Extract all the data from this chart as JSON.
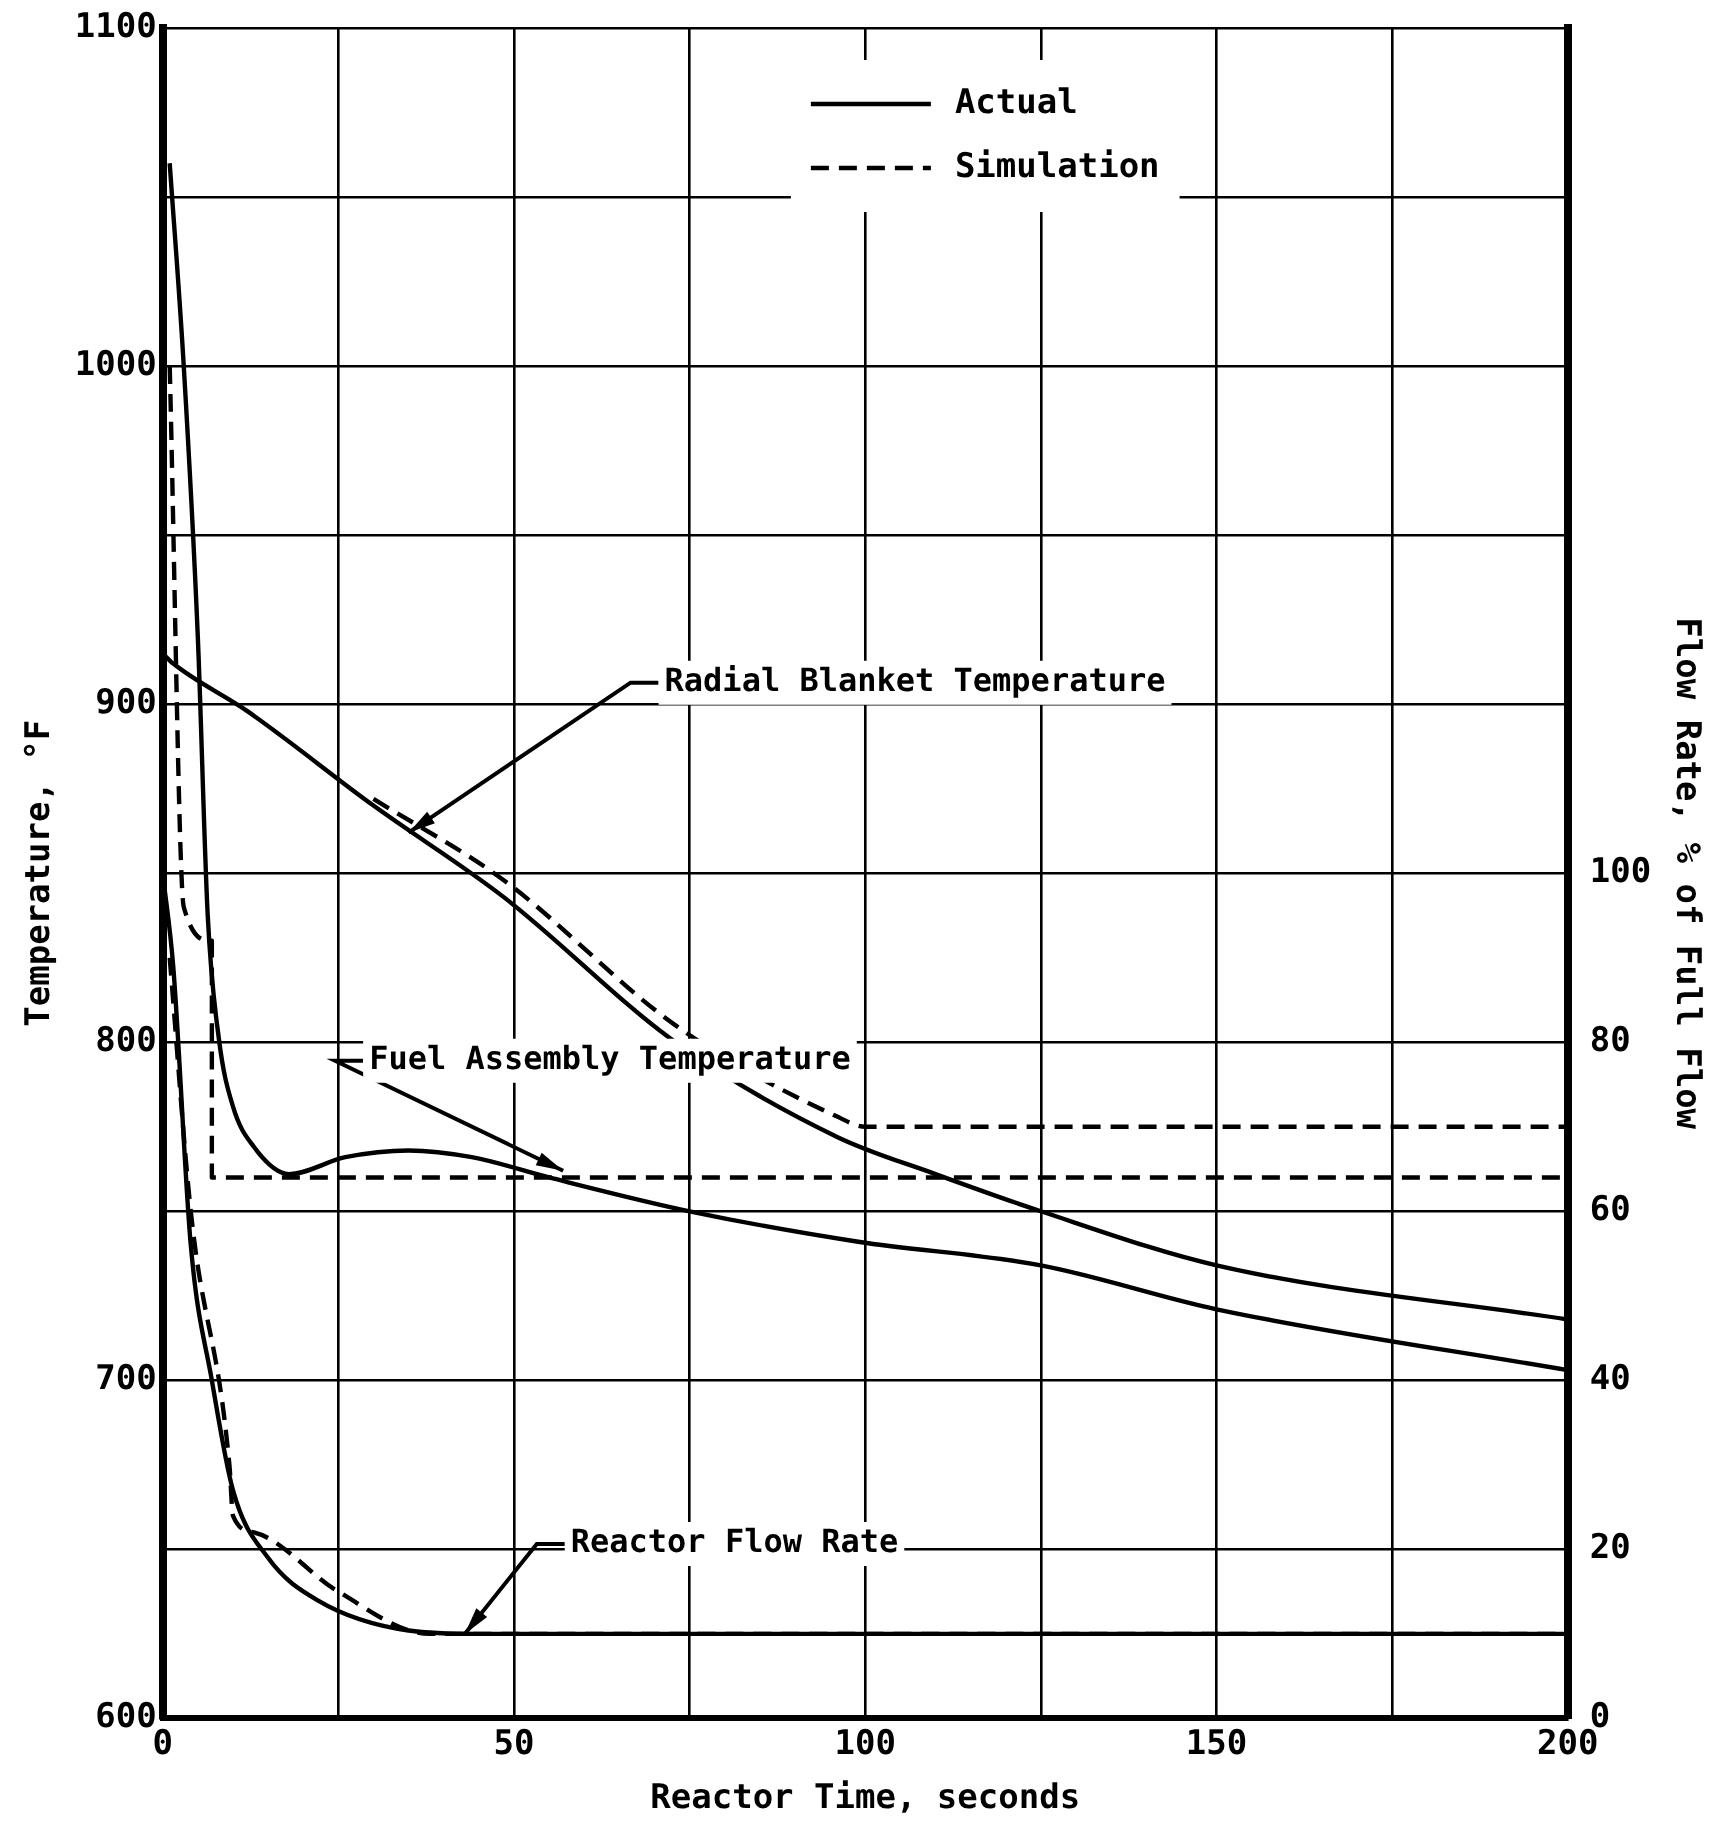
{
  "chart_data": {
    "type": "line",
    "xlabel": "Reactor Time, seconds",
    "ylabel": "Temperature, °F",
    "y2label": "Flow Rate, % of Full Flow",
    "xlim": [
      0,
      200
    ],
    "xticks": [
      0,
      {
        "value": 25,
        "label": null
      },
      50,
      {
        "value": 75,
        "label": null
      },
      100,
      {
        "value": 125,
        "label": null
      },
      150,
      {
        "value": 175,
        "label": null
      },
      200
    ],
    "ylim": [
      600,
      1100
    ],
    "yticks": [
      600,
      {
        "value": 650,
        "label": null
      },
      700,
      {
        "value": 750,
        "label": null
      },
      800,
      {
        "value": 850,
        "label": null
      },
      900,
      {
        "value": 950,
        "label": null
      },
      1000,
      {
        "value": 1050,
        "label": null
      },
      1100
    ],
    "y2lim": [
      0,
      200
    ],
    "y2ticks": [
      0,
      20,
      40,
      60,
      80,
      100
    ],
    "grid": true,
    "legend": "top",
    "marker": "none",
    "series": [
      {
        "name": "Actual",
        "color": "#000000",
        "line_style": "solid",
        "x": [
          0,
          1.5,
          12,
          30,
          48.5,
          73,
          96,
          110,
          125,
          150,
          200
        ],
        "values": [
          915,
          912,
          898,
          870,
          843,
          800,
          772,
          761,
          750,
          734,
          718
        ]
      },
      {
        "color": "#000000",
        "line_style": "solid",
        "x": [
          1,
          3,
          5,
          6.4,
          8,
          10,
          13,
          18,
          26,
          35,
          44,
          55,
          75,
          99,
          125,
          150,
          200
        ],
        "values": [
          1060,
          1000,
          920,
          838,
          801,
          781,
          769,
          761,
          766,
          768,
          766,
          760,
          750,
          741,
          734,
          721,
          703
        ]
      },
      {
        "color": "#000000",
        "line_style": "solid",
        "axis": "y2",
        "x": [
          0,
          1.5,
          4,
          7,
          10,
          15,
          22,
          35,
          45,
          200
        ],
        "values": [
          100,
          89,
          56,
          40,
          27,
          19,
          14,
          10.4,
          10,
          10
        ]
      },
      {
        "name": "Simulation",
        "color": "#000000",
        "line_style": "dashed",
        "x": [
          30,
          48.5,
          73,
          96,
          100,
          200
        ],
        "values": [
          872,
          848,
          805,
          778,
          775,
          775
        ]
      },
      {
        "color": "#000000",
        "line_style": "dashed",
        "x": [
          1,
          3,
          7,
          7,
          200
        ],
        "values": [
          1000,
          840,
          830,
          760,
          760
        ]
      },
      {
        "color": "#000000",
        "line_style": "dashed",
        "axis": "y2",
        "x": [
          1,
          4,
          9.5,
          10,
          13,
          25,
          38,
          200
        ],
        "values": [
          90,
          60,
          30,
          24,
          22,
          15,
          10,
          10
        ]
      }
    ],
    "annotations": [
      {
        "text": "Radial Blanket Temperature",
        "x": 35,
        "y": 862
      },
      {
        "text": "Fuel Assembly Temperature",
        "x": 57,
        "y": 762
      },
      {
        "text": "Reactor Flow Rate",
        "x": 43,
        "y": 625
      }
    ]
  }
}
